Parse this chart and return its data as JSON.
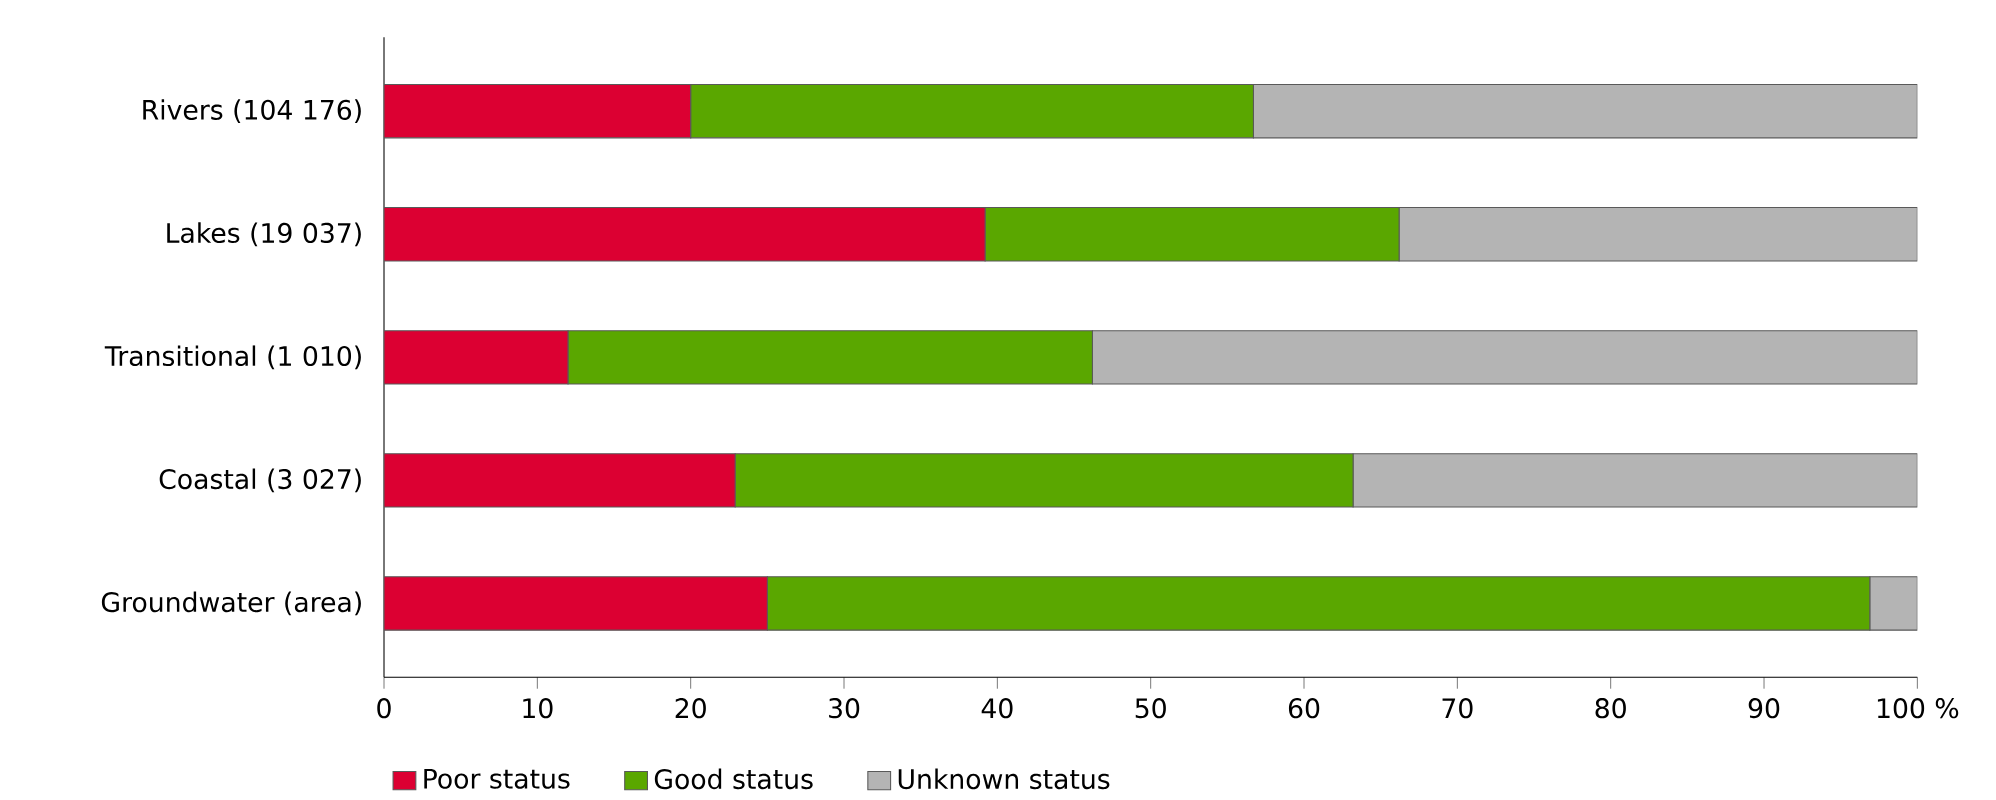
{
  "chart_data": {
    "type": "bar",
    "orientation": "horizontal",
    "stacked": true,
    "categories": [
      "Rivers (104 176)",
      "Lakes (19 037)",
      "Transitional (1 010)",
      "Coastal (3 027)",
      "Groundwater (area)"
    ],
    "series": [
      {
        "name": "Poor status",
        "color": "#dc0032",
        "values": [
          20,
          39.2,
          12,
          22.9,
          25
        ]
      },
      {
        "name": "Good status",
        "color": "#5aa700",
        "values": [
          36.7,
          27,
          34.2,
          40.3,
          71.9
        ]
      },
      {
        "name": "Unknown status",
        "color": "#b4b4b4",
        "values": [
          43.3,
          33.8,
          53.8,
          36.8,
          3.1
        ]
      }
    ],
    "xlim": [
      0,
      100
    ],
    "xticks": [
      0,
      10,
      20,
      30,
      40,
      50,
      60,
      70,
      80,
      90,
      {
        "value": 100,
        "label": "100 %"
      }
    ],
    "grid": false,
    "legend": "bottom left"
  }
}
